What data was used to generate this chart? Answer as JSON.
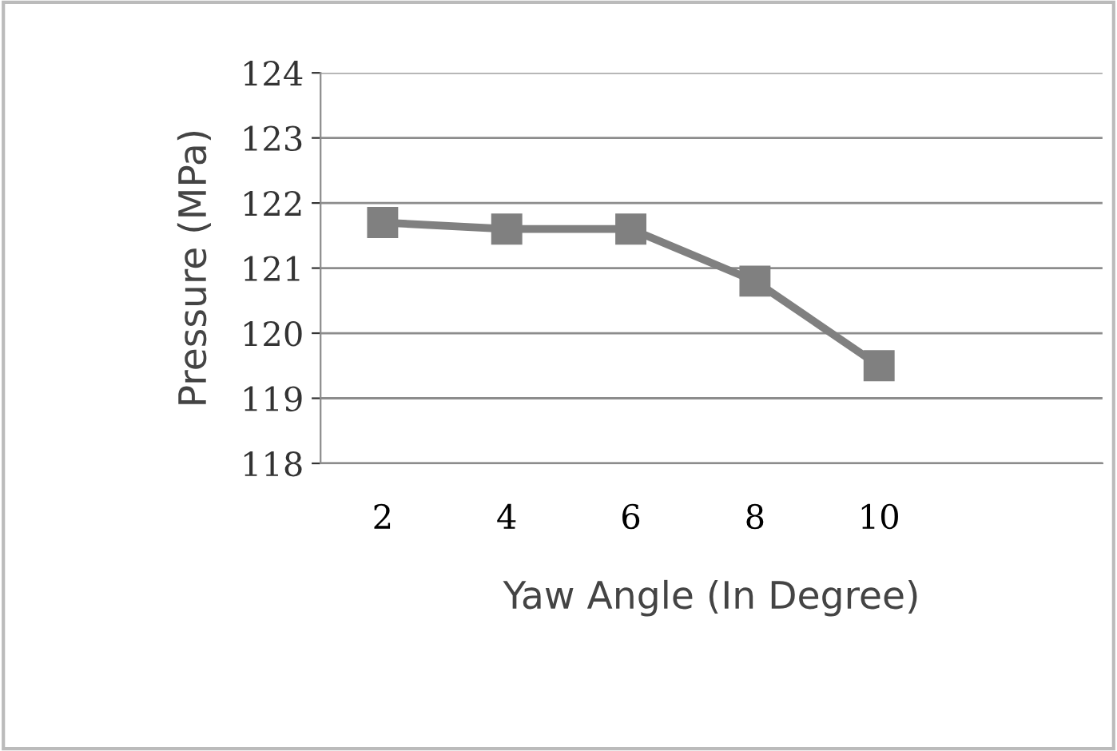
{
  "chart_data": {
    "type": "line",
    "xlabel": "Yaw Angle (In Degree)",
    "ylabel": "Pressure (MPa)",
    "categories": [
      "2",
      "4",
      "6",
      "8",
      "10"
    ],
    "series": [
      {
        "color": "#808080",
        "values": [
          121.7,
          121.6,
          121.6,
          120.8,
          119.5
        ]
      }
    ],
    "ylim": [
      118,
      124
    ],
    "yticks": [
      118,
      119,
      120,
      121,
      122,
      123,
      124
    ],
    "grid": "y",
    "marker": "square",
    "line_style": "solid",
    "legend": false
  }
}
